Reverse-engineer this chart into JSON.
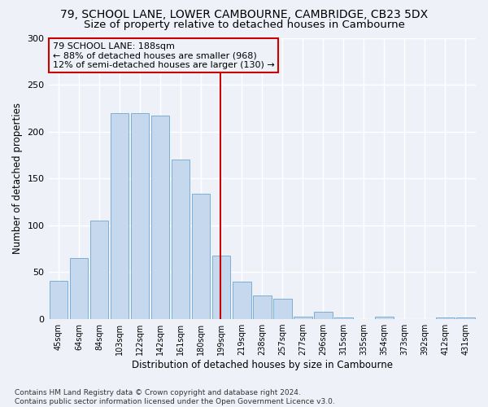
{
  "title": "79, SCHOOL LANE, LOWER CAMBOURNE, CAMBRIDGE, CB23 5DX",
  "subtitle": "Size of property relative to detached houses in Cambourne",
  "xlabel": "Distribution of detached houses by size in Cambourne",
  "ylabel": "Number of detached properties",
  "categories": [
    "45sqm",
    "64sqm",
    "84sqm",
    "103sqm",
    "122sqm",
    "142sqm",
    "161sqm",
    "180sqm",
    "199sqm",
    "219sqm",
    "238sqm",
    "257sqm",
    "277sqm",
    "296sqm",
    "315sqm",
    "335sqm",
    "354sqm",
    "373sqm",
    "392sqm",
    "412sqm",
    "431sqm"
  ],
  "values": [
    41,
    65,
    105,
    220,
    220,
    217,
    170,
    134,
    68,
    40,
    25,
    22,
    3,
    8,
    2,
    0,
    3,
    0,
    0,
    2,
    2
  ],
  "bar_color": "#c5d8ed",
  "bar_edge_color": "#7aafd4",
  "vline_x": 7.95,
  "vline_color": "#cc0000",
  "annotation_text": "79 SCHOOL LANE: 188sqm\n← 88% of detached houses are smaller (968)\n12% of semi-detached houses are larger (130) →",
  "annotation_box_color": "#cc0000",
  "ylim": [
    0,
    300
  ],
  "yticks": [
    0,
    50,
    100,
    150,
    200,
    250,
    300
  ],
  "background_color": "#eef2f8",
  "grid_color": "#ffffff",
  "footer": "Contains HM Land Registry data © Crown copyright and database right 2024.\nContains public sector information licensed under the Open Government Licence v3.0.",
  "title_fontsize": 10,
  "subtitle_fontsize": 9.5,
  "xlabel_fontsize": 8.5,
  "ylabel_fontsize": 8.5,
  "annot_fontsize": 8,
  "footer_fontsize": 6.5
}
